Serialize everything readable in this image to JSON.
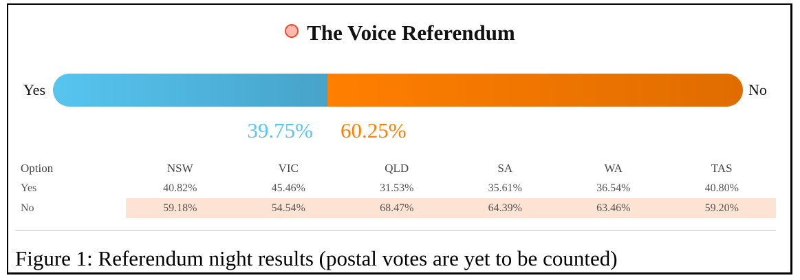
{
  "title": "The Voice Referendum",
  "bar": {
    "yes_label": "Yes",
    "no_label": "No",
    "yes_percent": 39.75,
    "no_percent": 60.25,
    "yes_text": "39.75%",
    "no_text": "60.25%",
    "yes_color": "#56c5f0",
    "no_color": "#ff7f00"
  },
  "table": {
    "headers": [
      "Option",
      "NSW",
      "VIC",
      "QLD",
      "SA",
      "WA",
      "TAS"
    ],
    "rows": [
      [
        "Yes",
        "40.82%",
        "45.46%",
        "31.53%",
        "35.61%",
        "36.54%",
        "40.80%"
      ],
      [
        "No",
        "59.18%",
        "54.54%",
        "68.47%",
        "64.39%",
        "63.46%",
        "59.20%"
      ]
    ]
  },
  "caption": "Figure 1: Referendum night results (postal votes are yet to be counted)"
}
